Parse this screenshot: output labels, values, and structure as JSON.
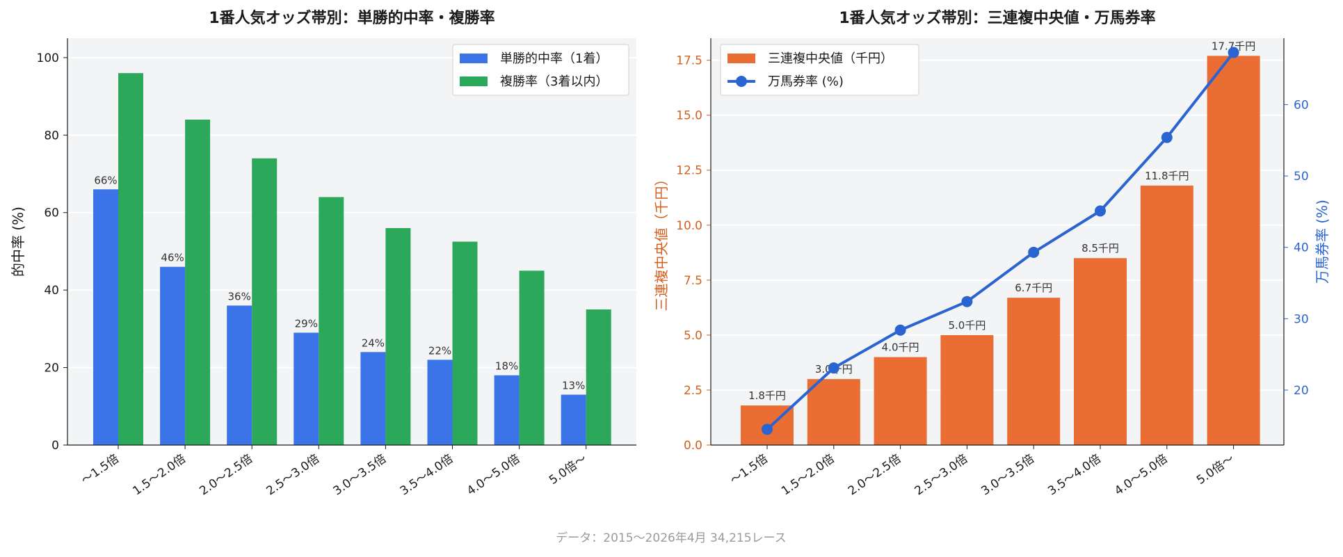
{
  "footer": "データ：2015〜2026年4月 34,215レース",
  "chart_data": [
    {
      "type": "bar",
      "title": "1番人気オッズ帯別：単勝的中率・複勝率",
      "ylabel": "的中率 (%)",
      "xlabel": "",
      "ylim": [
        0,
        105
      ],
      "yticks": [
        0,
        20,
        40,
        60,
        80,
        100
      ],
      "grid": true,
      "legend_position": "top-right",
      "categories": [
        "〜1.5倍",
        "1.5〜2.0倍",
        "2.0〜2.5倍",
        "2.5〜3.0倍",
        "3.0〜3.5倍",
        "3.5〜4.0倍",
        "4.0〜5.0倍",
        "5.0倍〜"
      ],
      "series": [
        {
          "name": "単勝的中率（1着）",
          "color": "#3b73e8",
          "values": [
            66,
            46,
            36,
            29,
            24,
            22,
            18,
            13
          ],
          "labels": [
            "66%",
            "46%",
            "36%",
            "29%",
            "24%",
            "22%",
            "18%",
            "13%"
          ]
        },
        {
          "name": "複勝率（3着以内）",
          "color": "#2ca85a",
          "values": [
            96,
            84,
            74,
            64,
            56,
            52.5,
            45,
            35
          ]
        }
      ]
    },
    {
      "type": "bar",
      "title": "1番人気オッズ帯別：三連複中央値・万馬券率",
      "ylabel": "三連複中央値（千円）",
      "y2label": "万馬券率 (%)",
      "ylim": [
        0,
        18.5
      ],
      "yticks": [
        0.0,
        2.5,
        5.0,
        7.5,
        10.0,
        12.5,
        15.0,
        17.5
      ],
      "y2lim": [
        12.3,
        69.3
      ],
      "y2ticks": [
        20,
        30,
        40,
        50,
        60
      ],
      "grid": true,
      "legend_position": "top-left",
      "left_axis_color": "#d4601e",
      "right_axis_color": "#2a64d0",
      "categories": [
        "〜1.5倍",
        "1.5〜2.0倍",
        "2.0〜2.5倍",
        "2.5〜3.0倍",
        "3.0〜3.5倍",
        "3.5〜4.0倍",
        "4.0〜5.0倍",
        "5.0倍〜"
      ],
      "series": [
        {
          "name": "三連複中央値（千円）",
          "type": "bar",
          "axis": "left",
          "color": "#ea6e34",
          "values": [
            1.8,
            3.0,
            4.0,
            5.0,
            6.7,
            8.5,
            11.8,
            17.7
          ],
          "labels": [
            "1.8千円",
            "3.0千円",
            "4.0千円",
            "5.0千円",
            "6.7千円",
            "8.5千円",
            "11.8千円",
            "17.7千円"
          ]
        },
        {
          "name": "万馬券率 (%)",
          "type": "line",
          "axis": "right",
          "color": "#2a64d0",
          "values": [
            14.5,
            23.1,
            28.4,
            32.4,
            39.3,
            45.1,
            55.4,
            67.3
          ]
        }
      ]
    }
  ]
}
